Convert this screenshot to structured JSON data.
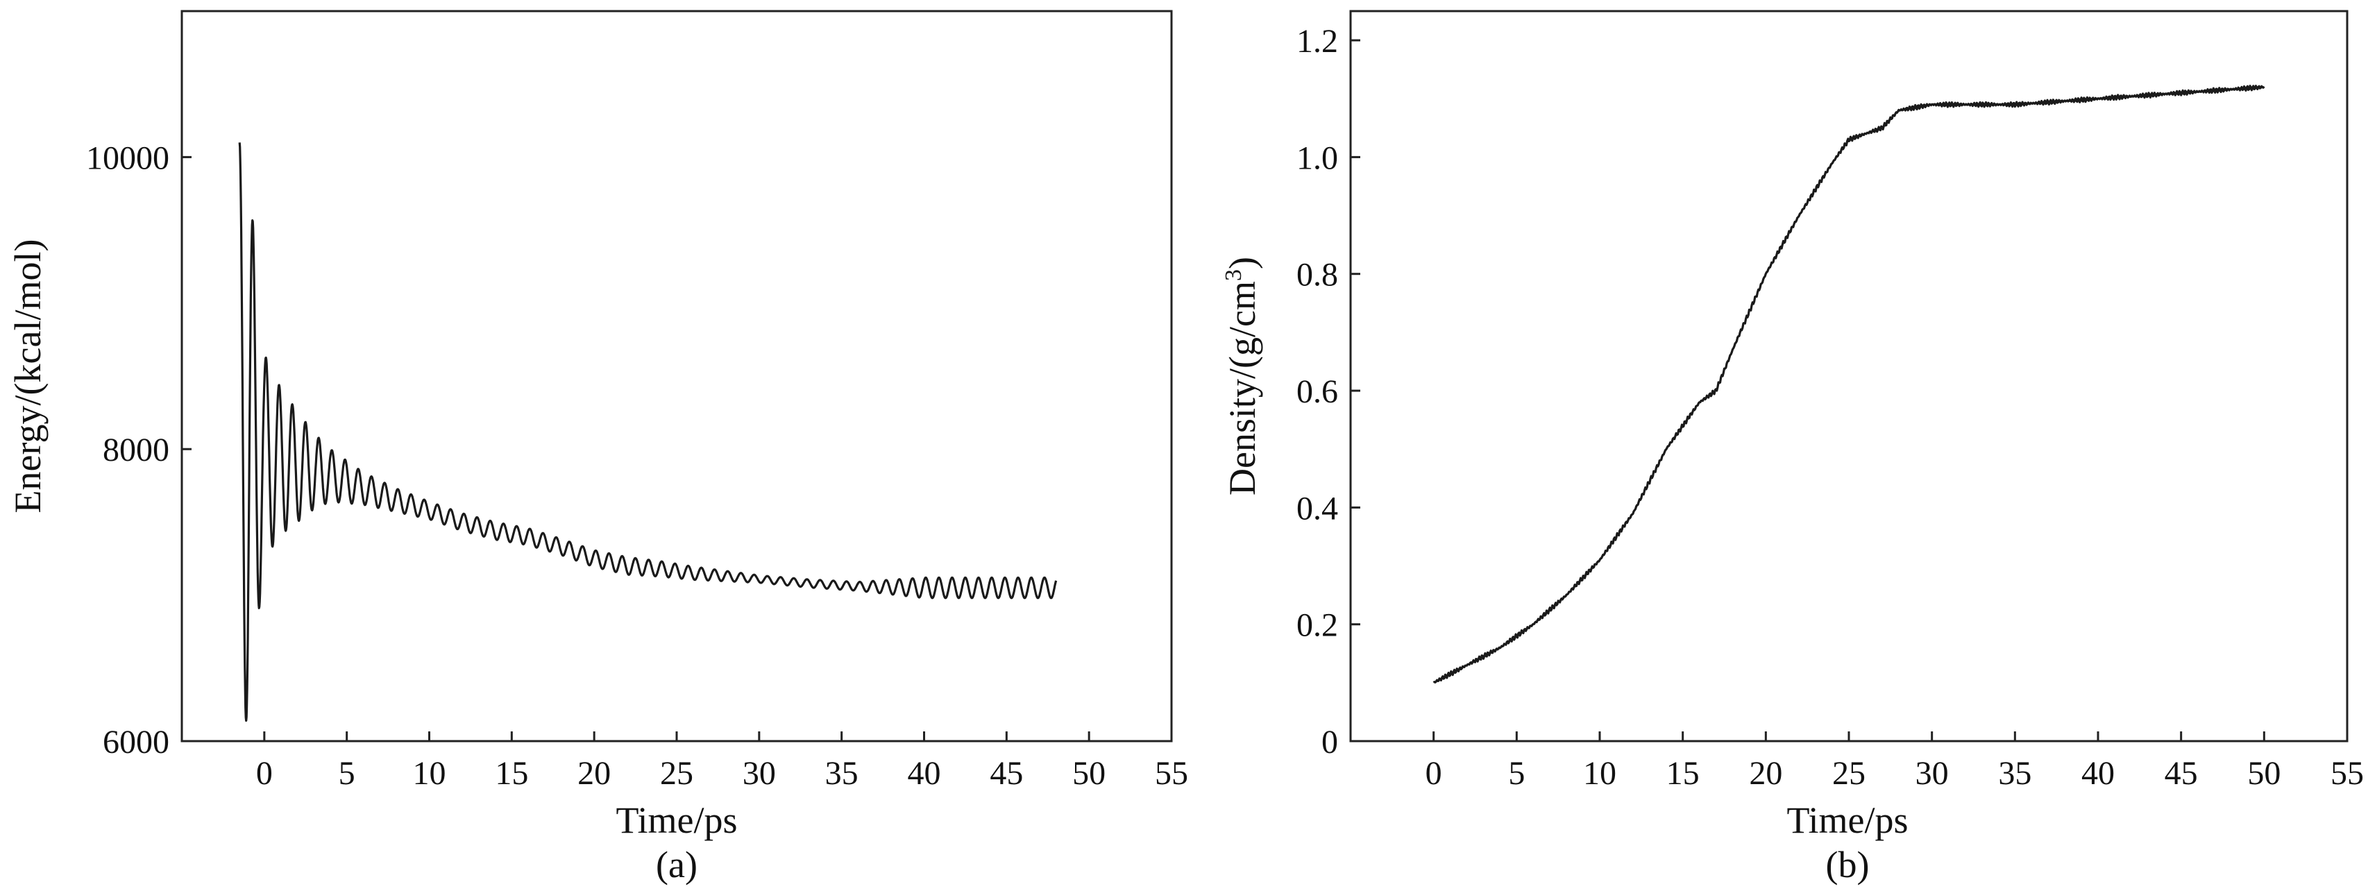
{
  "chart_data": [
    {
      "type": "line",
      "panel_label": "(a)",
      "xlabel": "Time/ps",
      "ylabel": "Energy/(kcal/mol)",
      "xlim": [
        -5,
        55
      ],
      "ylim": [
        6000,
        11000
      ],
      "xticks": [
        0,
        5,
        10,
        15,
        20,
        25,
        30,
        35,
        40,
        45,
        50,
        55
      ],
      "xtick_labels": [
        "0",
        "5",
        "10",
        "15",
        "20",
        "25",
        "30",
        "35",
        "40",
        "45",
        "50",
        "55"
      ],
      "yticks": [
        6000,
        8000,
        10000
      ],
      "ytick_labels": [
        "6000",
        "8000",
        "10000"
      ],
      "grid": false,
      "series": [
        {
          "color": "#1a1a1a",
          "baseline": {
            "x": [
              -1.5,
              0,
              2,
              4,
              6,
              8,
              10,
              12,
              14,
              16,
              18,
              20,
              22,
              24,
              26,
              28,
              30,
              33,
              36,
              40,
              44,
              48
            ],
            "y": [
              8100,
              7950,
              7880,
              7820,
              7730,
              7650,
              7580,
              7500,
              7440,
              7400,
              7330,
              7250,
              7200,
              7180,
              7150,
              7130,
              7110,
              7080,
              7060,
              7050,
              7050,
              7050
            ]
          },
          "oscillation": {
            "period": 0.8,
            "amplitude_t": [
              -1.5,
              -1,
              0,
              1,
              2,
              3,
              4,
              6,
              8,
              10,
              14,
              18,
              22,
              26,
              30,
              36,
              40,
              44,
              48
            ],
            "amplitude": [
              2000,
              1900,
              700,
              500,
              380,
              260,
              180,
              110,
              80,
              60,
              60,
              55,
              60,
              45,
              25,
              30,
              70,
              70,
              70
            ]
          }
        }
      ]
    },
    {
      "type": "line",
      "panel_label": "(b)",
      "xlabel": "Time/ps",
      "ylabel_prefix": "Density/(g/cm",
      "ylabel_sup": "3",
      "ylabel_suffix": ")",
      "xlim": [
        -5,
        55
      ],
      "ylim": [
        0,
        1.25
      ],
      "xticks": [
        0,
        5,
        10,
        15,
        20,
        25,
        30,
        35,
        40,
        45,
        50,
        55
      ],
      "xtick_labels": [
        "0",
        "5",
        "10",
        "15",
        "20",
        "25",
        "30",
        "35",
        "40",
        "45",
        "50",
        "55"
      ],
      "yticks": [
        0,
        0.2,
        0.4,
        0.6,
        0.8,
        1.0,
        1.2
      ],
      "ytick_labels": [
        "0",
        "0.2",
        "0.4",
        "0.6",
        "0.8",
        "1.0",
        "1.2"
      ],
      "grid": false,
      "series": [
        {
          "color": "#1a1a1a",
          "x": [
            0,
            2,
            4,
            6,
            8,
            10,
            12,
            14,
            16,
            17,
            18,
            20,
            22,
            24,
            25,
            26,
            27,
            28,
            30,
            32,
            35,
            40,
            45,
            50
          ],
          "y": [
            0.1,
            0.13,
            0.16,
            0.2,
            0.25,
            0.31,
            0.39,
            0.5,
            0.58,
            0.6,
            0.67,
            0.8,
            0.9,
            0.99,
            1.03,
            1.04,
            1.05,
            1.08,
            1.09,
            1.09,
            1.09,
            1.1,
            1.11,
            1.12
          ],
          "noise_amplitude": 0.004
        }
      ]
    }
  ]
}
